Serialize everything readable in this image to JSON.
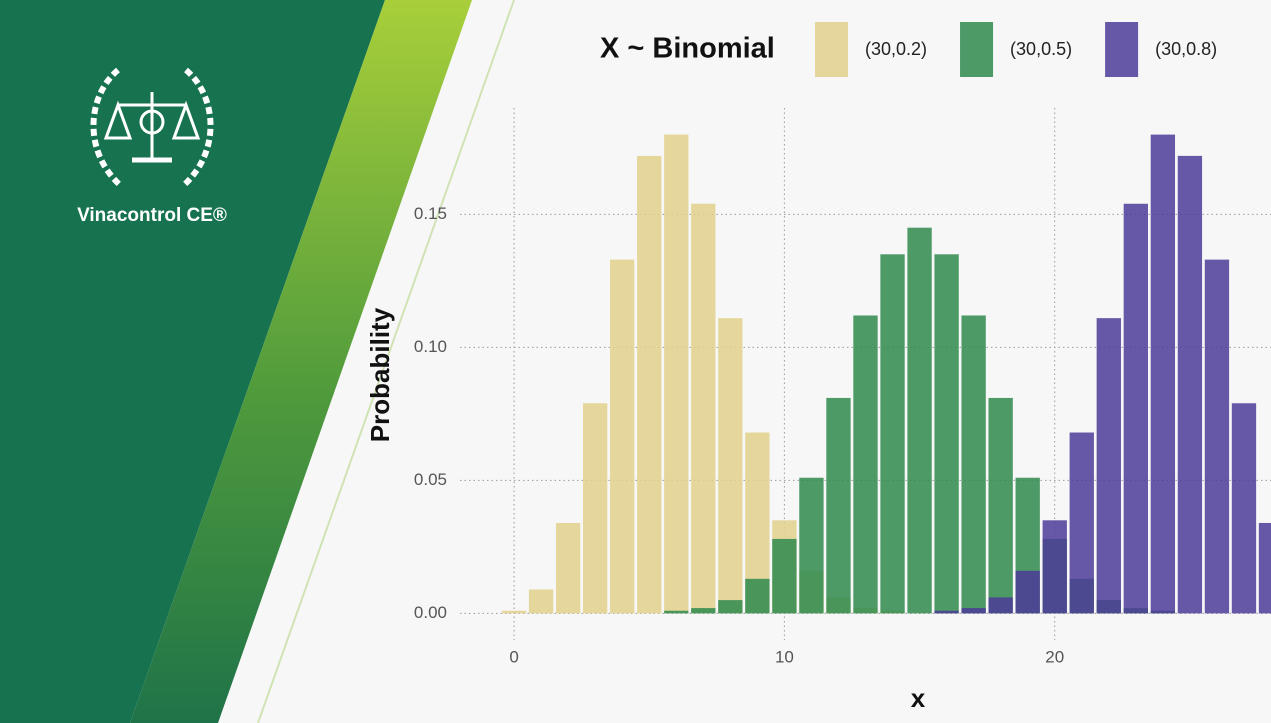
{
  "brand": "Vinacontrol CE®",
  "chart_data": {
    "type": "bar",
    "legend_title": "X ~ Binomial",
    "x_label": "x",
    "y_label": "Probability",
    "x": [
      0,
      1,
      2,
      3,
      4,
      5,
      6,
      7,
      8,
      9,
      10,
      11,
      12,
      13,
      14,
      15,
      16,
      17,
      18,
      19,
      20,
      21,
      22,
      23,
      24,
      25,
      26,
      27,
      28
    ],
    "series": [
      {
        "name": "(30,0.2)",
        "color": "#e2d18c",
        "values": [
          0.001,
          0.009,
          0.034,
          0.079,
          0.133,
          0.172,
          0.18,
          0.154,
          0.111,
          0.068,
          0.035,
          0.016,
          0.006,
          0.002,
          0.001,
          0,
          0,
          0,
          0,
          0,
          0,
          0,
          0,
          0,
          0,
          0,
          0,
          0,
          0
        ]
      },
      {
        "name": "(30,0.5)",
        "color": "#2f8a4d",
        "values": [
          0,
          0,
          0,
          0,
          0,
          0,
          0.001,
          0.002,
          0.005,
          0.013,
          0.028,
          0.051,
          0.081,
          0.112,
          0.135,
          0.145,
          0.135,
          0.112,
          0.081,
          0.051,
          0.028,
          0.013,
          0.005,
          0.002,
          0.001,
          0,
          0,
          0,
          0
        ]
      },
      {
        "name": "(30,0.8)",
        "color": "#4c3b99",
        "values": [
          0,
          0,
          0,
          0,
          0,
          0,
          0,
          0,
          0,
          0,
          0,
          0,
          0,
          0,
          0,
          0,
          0.001,
          0.002,
          0.006,
          0.016,
          0.035,
          0.068,
          0.111,
          0.154,
          0.18,
          0.172,
          0.133,
          0.079,
          0.034
        ]
      }
    ],
    "xlim": [
      -2,
      28
    ],
    "ylim": [
      -0.01,
      0.19
    ],
    "xticks": [
      0,
      10,
      20
    ],
    "yticks": [
      {
        "value": 0,
        "label": "0.00"
      },
      {
        "value": 0.05,
        "label": "0.05"
      },
      {
        "value": 0.1,
        "label": "0.10"
      },
      {
        "value": 0.15,
        "label": "0.15"
      }
    ],
    "grid": true,
    "legend": "top"
  }
}
